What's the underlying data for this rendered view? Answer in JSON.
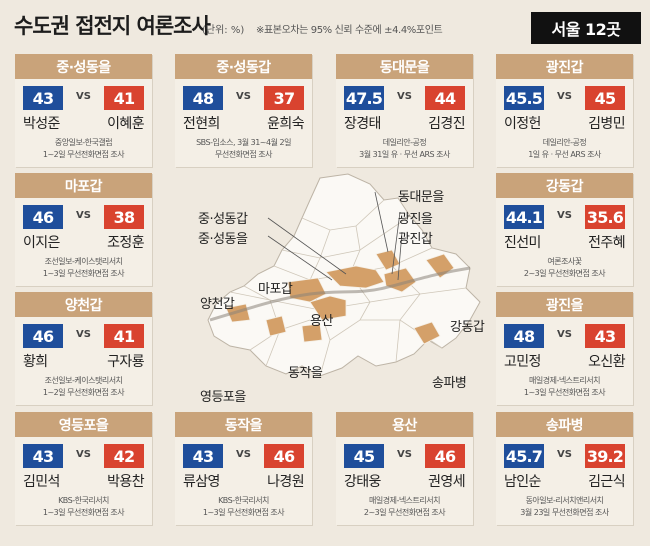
{
  "header": {
    "title": "수도권 접전지 여론조사",
    "unit": "(단위: %)",
    "note": "※표본오차는 95% 신뢰 수준에 ±4.4%포인트",
    "region": "서울 12곳"
  },
  "colors": {
    "blue": "#1f4e9b",
    "red": "#d9432f",
    "tan": "#c9a37a",
    "map_highlight": "#d4a069",
    "map_base": "#fbf9f5"
  },
  "vs_label": "VS",
  "cards": [
    {
      "district": "중·성동을",
      "blue_score": "43",
      "red_score": "41",
      "blue_name": "박성준",
      "red_name": "이혜훈",
      "source1": "중앙일보-한국갤럽",
      "source2": "1~2일 무선전화면접 조사"
    },
    {
      "district": "중·성동갑",
      "blue_score": "48",
      "red_score": "37",
      "blue_name": "전현희",
      "red_name": "윤희숙",
      "source1": "SBS-입소스, 3월 31~4월 2일",
      "source2": "무선전화면접 조사"
    },
    {
      "district": "동대문을",
      "blue_score": "47.5",
      "red_score": "44",
      "blue_name": "장경태",
      "red_name": "김경진",
      "source1": "데일리안-공정",
      "source2": "3월 31일 유 · 무선 ARS 조사"
    },
    {
      "district": "광진갑",
      "blue_score": "45.5",
      "red_score": "45",
      "blue_name": "이정헌",
      "red_name": "김병민",
      "source1": "데일리안-공정",
      "source2": "1일 유 · 무선 ARS  조사"
    },
    {
      "district": "마포갑",
      "blue_score": "46",
      "red_score": "38",
      "blue_name": "이지은",
      "red_name": "조정훈",
      "source1": "조선일보-케이스탯리서치",
      "source2": "1~3일 무선전화면접 조사"
    },
    {
      "district": "강동갑",
      "blue_score": "44.1",
      "red_score": "35.6",
      "blue_name": "진선미",
      "red_name": "전주혜",
      "source1": "여론조사꽃",
      "source2": "2~3일 무선전화면접 조사"
    },
    {
      "district": "양천갑",
      "blue_score": "46",
      "red_score": "41",
      "blue_name": "황희",
      "red_name": "구자룡",
      "source1": "조선일보-케이스탯리서치",
      "source2": "1~2일 무선전화면접 조사"
    },
    {
      "district": "광진을",
      "blue_score": "48",
      "red_score": "43",
      "blue_name": "고민정",
      "red_name": "오신환",
      "source1": "매일경제-넥스트리서치",
      "source2": "1~3일 무선전화면접 조사"
    },
    {
      "district": "영등포을",
      "blue_score": "43",
      "red_score": "42",
      "blue_name": "김민석",
      "red_name": "박용찬",
      "source1": "KBS-한국리서치",
      "source2": "1~3일 무선전화면접 조사"
    },
    {
      "district": "동작을",
      "blue_score": "43",
      "red_score": "46",
      "blue_name": "류삼영",
      "red_name": "나경원",
      "source1": "KBS-한국리서치",
      "source2": "1~3일 무선전화면접 조사"
    },
    {
      "district": "용산",
      "blue_score": "45",
      "red_score": "46",
      "blue_name": "강태웅",
      "red_name": "권영세",
      "source1": "매일경제-넥스트리서치",
      "source2": "2~3일 무선전화면접 조사"
    },
    {
      "district": "송파병",
      "blue_score": "45.7",
      "red_score": "39.2",
      "blue_name": "남인순",
      "red_name": "김근식",
      "source1": "동아일보-리서치앤리서치",
      "source2": "3월 23일 무선전화면접 조사"
    }
  ],
  "map_labels": [
    "동대문을",
    "중·성동갑",
    "광진을",
    "중·성동을",
    "광진갑",
    "마포갑",
    "양천갑",
    "용산",
    "강동갑",
    "동작을",
    "영등포을",
    "송파병"
  ]
}
